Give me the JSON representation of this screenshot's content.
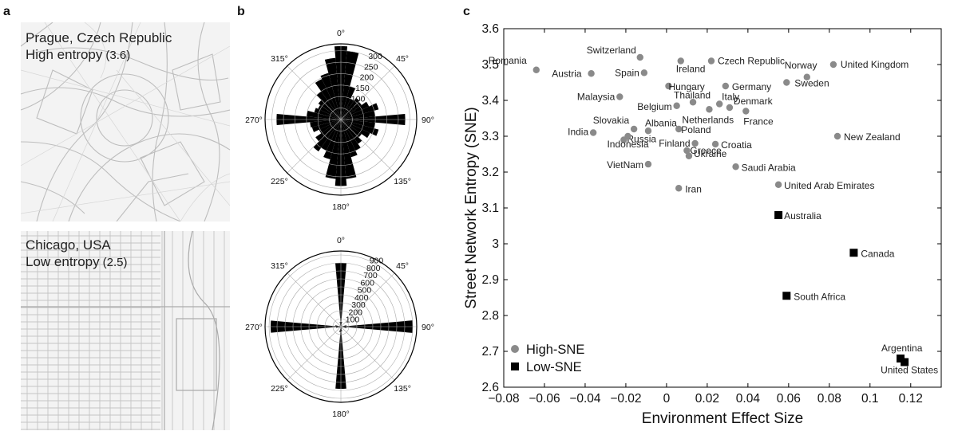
{
  "panels": {
    "a": "a",
    "b": "b",
    "c": "c"
  },
  "maps": {
    "prague": {
      "city": "Prague, Czech Republic",
      "entropy_label": "High entropy",
      "entropy_value": "(3.6)"
    },
    "chicago": {
      "city": "Chicago, USA",
      "entropy_label": "Low entropy",
      "entropy_value": "(2.5)"
    }
  },
  "chart_data": [
    {
      "type": "polar-bar",
      "name": "prague-orientation",
      "angle_labels": [
        "0°",
        "45°",
        "90°",
        "135°",
        "180°",
        "225°",
        "270°",
        "315°"
      ],
      "radial_ticks": [
        50,
        100,
        150,
        200,
        250,
        300
      ],
      "rmax": 330,
      "bin_width_deg": 10,
      "bins_deg": [
        0,
        10,
        20,
        30,
        40,
        50,
        60,
        70,
        80,
        90,
        100,
        110,
        120,
        130,
        140,
        150,
        160,
        170,
        180,
        190,
        200,
        210,
        220,
        230,
        240,
        250,
        260,
        270,
        280,
        290,
        300,
        310,
        320,
        330,
        340,
        350
      ],
      "values": [
        320,
        300,
        150,
        100,
        115,
        110,
        135,
        170,
        150,
        280,
        150,
        170,
        140,
        110,
        130,
        150,
        170,
        260,
        290,
        260,
        180,
        150,
        170,
        135,
        105,
        130,
        135,
        280,
        150,
        120,
        110,
        120,
        150,
        195,
        210,
        270
      ]
    },
    {
      "type": "polar-bar",
      "name": "chicago-orientation",
      "angle_labels": [
        "0°",
        "45°",
        "90°",
        "135°",
        "180°",
        "225°",
        "270°",
        "315°"
      ],
      "radial_ticks": [
        100,
        200,
        300,
        400,
        500,
        600,
        700,
        800,
        900
      ],
      "rmax": 950,
      "bin_width_deg": 10,
      "bins_deg": [
        0,
        10,
        20,
        30,
        40,
        50,
        60,
        70,
        80,
        90,
        100,
        110,
        120,
        130,
        140,
        150,
        160,
        170,
        180,
        190,
        200,
        210,
        220,
        230,
        240,
        250,
        260,
        270,
        280,
        290,
        300,
        310,
        320,
        330,
        340,
        350
      ],
      "values": [
        800,
        60,
        25,
        15,
        12,
        10,
        12,
        15,
        70,
        900,
        70,
        20,
        12,
        10,
        12,
        15,
        30,
        60,
        780,
        70,
        20,
        12,
        10,
        12,
        15,
        30,
        60,
        880,
        70,
        20,
        12,
        10,
        12,
        15,
        30,
        60
      ]
    },
    {
      "type": "scatter",
      "name": "sne-vs-effect",
      "xlabel": "Environment Effect Size",
      "ylabel": "Street Network Entropy (SNE)",
      "xlim": [
        -0.08,
        0.135
      ],
      "ylim": [
        2.6,
        3.6
      ],
      "xticks": [
        -0.08,
        -0.06,
        -0.04,
        -0.02,
        0,
        0.02,
        0.04,
        0.06,
        0.08,
        0.1,
        0.12
      ],
      "xtick_labels": [
        "−0.08",
        "−0.06",
        "−0.04",
        "−0.02",
        "0",
        "0.02",
        "0.04",
        "0.06",
        "0.08",
        "0.1",
        "0.12"
      ],
      "yticks": [
        2.6,
        2.7,
        2.8,
        2.9,
        3,
        3.1,
        3.2,
        3.3,
        3.4,
        3.5,
        3.6
      ],
      "ytick_labels": [
        "2.6",
        "2.7",
        "2.8",
        "2.9",
        "3",
        "3.1",
        "3.2",
        "3.3",
        "3.4",
        "3.5",
        "3.6"
      ],
      "legend": [
        {
          "name": "High-SNE",
          "marker": "circle",
          "color": "#8a8a8a"
        },
        {
          "name": "Low-SNE",
          "marker": "square",
          "color": "#000000"
        }
      ],
      "legend_position": "bottom-left",
      "series": [
        {
          "name": "High-SNE",
          "points": [
            {
              "label": "Romania",
              "x": -0.064,
              "y": 3.485
            },
            {
              "label": "Austria",
              "x": -0.037,
              "y": 3.475
            },
            {
              "label": "Switzerland",
              "x": -0.013,
              "y": 3.52
            },
            {
              "label": "Spain",
              "x": -0.011,
              "y": 3.477
            },
            {
              "label": "Ireland",
              "x": 0.007,
              "y": 3.51
            },
            {
              "label": "Czech Republic",
              "x": 0.022,
              "y": 3.51
            },
            {
              "label": "Norway",
              "x": 0.069,
              "y": 3.465
            },
            {
              "label": "United Kingdom",
              "x": 0.082,
              "y": 3.5
            },
            {
              "label": "Sweden",
              "x": 0.059,
              "y": 3.45
            },
            {
              "label": "Hungary",
              "x": 0.001,
              "y": 3.44
            },
            {
              "label": "Germany",
              "x": 0.029,
              "y": 3.44
            },
            {
              "label": "Malaysia",
              "x": -0.023,
              "y": 3.41
            },
            {
              "label": "Thailand",
              "x": 0.013,
              "y": 3.395
            },
            {
              "label": "Italy",
              "x": 0.026,
              "y": 3.39
            },
            {
              "label": "Belgium",
              "x": 0.005,
              "y": 3.385
            },
            {
              "label": "Denmark",
              "x": 0.031,
              "y": 3.38
            },
            {
              "label": "Netherlands",
              "x": 0.021,
              "y": 3.375
            },
            {
              "label": "France",
              "x": 0.039,
              "y": 3.37
            },
            {
              "label": "Slovakia",
              "x": -0.016,
              "y": 3.32
            },
            {
              "label": "Albania",
              "x": -0.009,
              "y": 3.315
            },
            {
              "label": "Poland",
              "x": 0.006,
              "y": 3.32
            },
            {
              "label": "India",
              "x": -0.036,
              "y": 3.31
            },
            {
              "label": "Russia",
              "x": -0.021,
              "y": 3.29
            },
            {
              "label": "New Zealand",
              "x": 0.084,
              "y": 3.3
            },
            {
              "label": "Indonesia",
              "x": -0.019,
              "y": 3.3
            },
            {
              "label": "Finland",
              "x": 0.014,
              "y": 3.28
            },
            {
              "label": "Croatia",
              "x": 0.024,
              "y": 3.278
            },
            {
              "label": "Greece",
              "x": 0.01,
              "y": 3.26
            },
            {
              "label": "VietNam",
              "x": -0.009,
              "y": 3.222
            },
            {
              "label": "Ukraine",
              "x": 0.011,
              "y": 3.245
            },
            {
              "label": "Saudi Arabia",
              "x": 0.034,
              "y": 3.215
            },
            {
              "label": "United Arab Emirates",
              "x": 0.055,
              "y": 3.165
            },
            {
              "label": "Iran",
              "x": 0.006,
              "y": 3.155
            }
          ]
        },
        {
          "name": "Low-SNE",
          "points": [
            {
              "label": "Australia",
              "x": 0.055,
              "y": 3.08
            },
            {
              "label": "Canada",
              "x": 0.092,
              "y": 2.975
            },
            {
              "label": "South Africa",
              "x": 0.059,
              "y": 2.855
            },
            {
              "label": "Argentina",
              "x": 0.115,
              "y": 2.68
            },
            {
              "label": "United States",
              "x": 0.117,
              "y": 2.67
            }
          ]
        }
      ]
    }
  ]
}
